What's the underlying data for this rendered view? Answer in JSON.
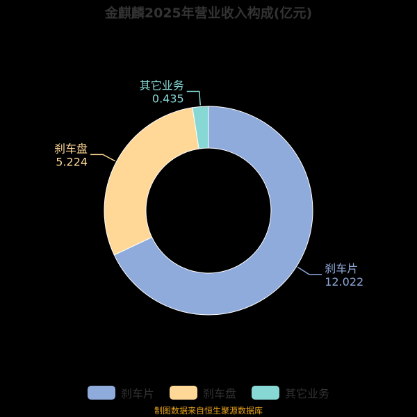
{
  "colors": {
    "background": "#000000",
    "text": "#333333",
    "source": "#e8a21b"
  },
  "chart_data": {
    "type": "pie",
    "title": "金麒麟2025年营业收入构成(亿元)",
    "donut": true,
    "series": [
      {
        "name": "刹车片",
        "value": 12.022,
        "color": "#8fabdc"
      },
      {
        "name": "刹车盘",
        "value": 5.224,
        "color": "#ffd898"
      },
      {
        "name": "其它业务",
        "value": 0.435,
        "color": "#87d8d5"
      }
    ],
    "legend": [
      {
        "label": "刹车片",
        "color": "#8fabdc"
      },
      {
        "label": "刹车盘",
        "color": "#ffd898"
      },
      {
        "label": "其它业务",
        "color": "#87d8d5"
      }
    ],
    "legend_position": "bottom"
  },
  "source": "制图数据来自恒生聚源数据库"
}
